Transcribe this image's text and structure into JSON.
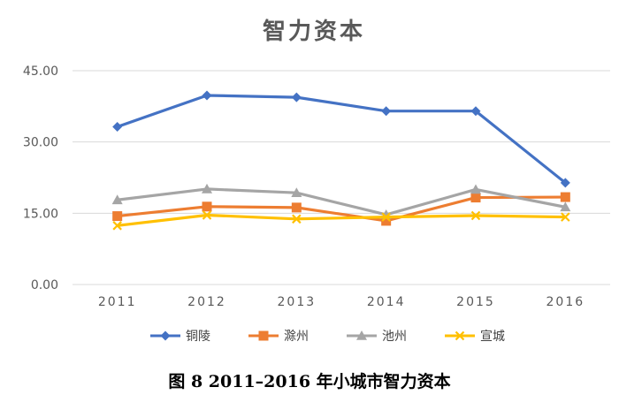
{
  "chart_data": {
    "type": "line",
    "title": "智力资本",
    "categories": [
      "2011",
      "2012",
      "2013",
      "2014",
      "2015",
      "2016"
    ],
    "ylim": [
      0,
      45
    ],
    "yticks": [
      "0.00",
      "15.00",
      "30.00",
      "45.00"
    ],
    "grid": true,
    "legend_position": "bottom",
    "series": [
      {
        "name": "铜陵",
        "color": "#4472c4",
        "marker": "diamond",
        "values": [
          33.2,
          39.8,
          39.4,
          36.5,
          36.5,
          21.4
        ]
      },
      {
        "name": "滁州",
        "color": "#ed7d31",
        "marker": "square",
        "values": [
          14.4,
          16.4,
          16.2,
          13.4,
          18.3,
          18.4
        ]
      },
      {
        "name": "池州",
        "color": "#a5a5a5",
        "marker": "triangle",
        "values": [
          17.8,
          20.1,
          19.3,
          14.7,
          20.0,
          16.3
        ]
      },
      {
        "name": "宣城",
        "color": "#ffc000",
        "marker": "x",
        "values": [
          12.4,
          14.6,
          13.8,
          14.2,
          14.5,
          14.2
        ]
      }
    ]
  },
  "caption": "图 8  2011–2016 年小城市智力资本"
}
